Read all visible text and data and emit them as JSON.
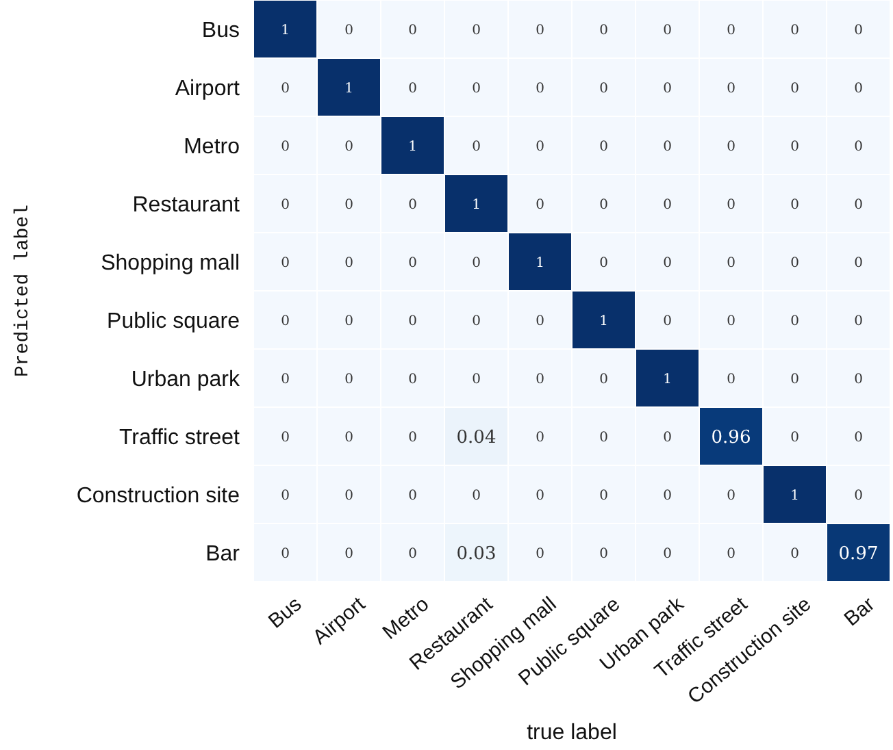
{
  "chart_data": {
    "type": "heatmap",
    "data_labels": true,
    "xlabel": "true label",
    "ylabel": "Predicted label",
    "categories": [
      "Bus",
      "Airport",
      "Metro",
      "Restaurant",
      "Shopping mall",
      "Public square",
      "Urban park",
      "Traffic street",
      "Construction site",
      "Bar"
    ],
    "y_categories": [
      "Bus",
      "Airport",
      "Metro",
      "Restaurant",
      "Shopping mall",
      "Public square",
      "Urban park",
      "Traffic street",
      "Construction site",
      "Bar"
    ],
    "cells": [
      [
        1,
        0,
        0,
        0,
        0,
        0,
        0,
        0,
        0,
        0
      ],
      [
        0,
        1,
        0,
        0,
        0,
        0,
        0,
        0,
        0,
        0
      ],
      [
        0,
        0,
        1,
        0,
        0,
        0,
        0,
        0,
        0,
        0
      ],
      [
        0,
        0,
        0,
        1,
        0,
        0,
        0,
        0,
        0,
        0
      ],
      [
        0,
        0,
        0,
        0,
        1,
        0,
        0,
        0,
        0,
        0
      ],
      [
        0,
        0,
        0,
        0,
        0,
        1,
        0,
        0,
        0,
        0
      ],
      [
        0,
        0,
        0,
        0,
        0,
        0,
        1,
        0,
        0,
        0
      ],
      [
        0,
        0,
        0,
        0.04,
        0,
        0,
        0,
        0.96,
        0,
        0
      ],
      [
        0,
        0,
        0,
        0,
        0,
        0,
        0,
        0,
        1,
        0
      ],
      [
        0,
        0,
        0,
        0.03,
        0,
        0,
        0,
        0,
        0,
        0.97
      ]
    ]
  }
}
